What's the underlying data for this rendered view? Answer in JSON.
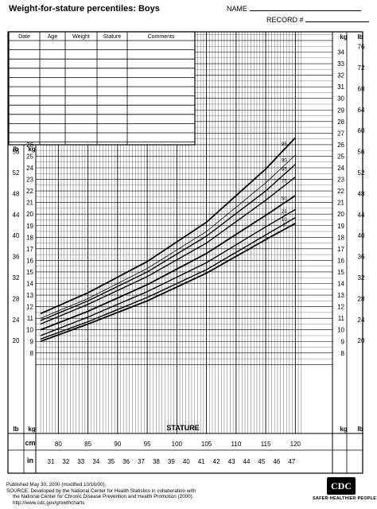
{
  "header": {
    "title": "Weight-for-stature percentiles: Boys",
    "name_label": "NAME",
    "record_label": "RECORD #"
  },
  "record_table": {
    "columns": [
      "Date",
      "Age",
      "Weight",
      "Stature",
      "Comments"
    ]
  },
  "axis_units": {
    "kg": "kg",
    "lb": "lb",
    "cm": "cm",
    "in": "in"
  },
  "footer": {
    "line1": "Published May 30, 2000 (modified 10/16/00).",
    "line2": "SOURCE: Developed by the National Center for Health Statistics in collaboration with",
    "line3": "the National Center for Chronic Disease Prevention and Health Promotion (2000).",
    "line4": "http://www.cdc.gov/growthcharts"
  },
  "logo": {
    "text": "CDC",
    "tagline": "SAFER·HEALTHIER·PEOPLE™"
  },
  "chart_data": {
    "type": "line",
    "title": "Weight-for-stature percentiles: Boys",
    "xlabel": "STATURE",
    "ylabel": "kg",
    "xlim": [
      77,
      121
    ],
    "ylim": [
      7,
      35
    ],
    "x_ticks_cm": [
      "80",
      "85",
      "90",
      "95",
      "100",
      "105",
      "110",
      "115",
      "120"
    ],
    "x_ticks_in": [
      "31",
      "32",
      "33",
      "34",
      "35",
      "36",
      "37",
      "38",
      "39",
      "40",
      "41",
      "42",
      "43",
      "44",
      "45",
      "46",
      "47"
    ],
    "y_ticks_kg_upper": [
      "34",
      "33",
      "32",
      "31",
      "30",
      "29",
      "28"
    ],
    "y_ticks_kg": [
      "26",
      "25",
      "24",
      "23",
      "22",
      "21",
      "20",
      "19",
      "18",
      "17",
      "16",
      "15",
      "14",
      "13",
      "12",
      "11",
      "10",
      "9",
      "8"
    ],
    "y_ticks_kg_right": [
      "34",
      "33",
      "32",
      "31",
      "30",
      "29",
      "28",
      "27",
      "26",
      "25",
      "24",
      "23",
      "22",
      "21",
      "20",
      "19",
      "18",
      "17",
      "16",
      "15",
      "14",
      "13",
      "12",
      "11",
      "10",
      "9",
      "8"
    ],
    "y_ticks_lb_left": [
      "56",
      "52",
      "48",
      "44",
      "40",
      "36",
      "32",
      "28",
      "24",
      "20"
    ],
    "y_ticks_lb_right": [
      "76",
      "72",
      "68",
      "64",
      "60",
      "56",
      "52",
      "48",
      "44",
      "40",
      "36",
      "32",
      "28",
      "24",
      "20"
    ],
    "x": [
      77,
      85,
      95,
      105,
      115,
      120
    ],
    "series": [
      {
        "name": "95",
        "values": [
          11.4,
          13.2,
          15.9,
          19.3,
          23.9,
          26.6
        ]
      },
      {
        "name": "90",
        "values": [
          11.0,
          12.7,
          15.3,
          18.5,
          22.7,
          25.1
        ]
      },
      {
        "name": "85",
        "values": [
          10.8,
          12.5,
          15.0,
          18.1,
          22.0,
          24.3
        ]
      },
      {
        "name": "75",
        "values": [
          10.5,
          12.2,
          14.6,
          17.5,
          21.2,
          23.2
        ]
      },
      {
        "name": "50",
        "values": [
          10.0,
          11.6,
          13.9,
          16.6,
          19.9,
          21.6
        ]
      },
      {
        "name": "25",
        "values": [
          9.5,
          11.1,
          13.3,
          15.8,
          18.9,
          20.4
        ]
      },
      {
        "name": "10",
        "values": [
          9.2,
          10.7,
          12.8,
          15.2,
          18.2,
          19.7
        ]
      },
      {
        "name": "5",
        "values": [
          9.0,
          10.5,
          12.5,
          14.9,
          17.8,
          19.2
        ]
      }
    ]
  }
}
